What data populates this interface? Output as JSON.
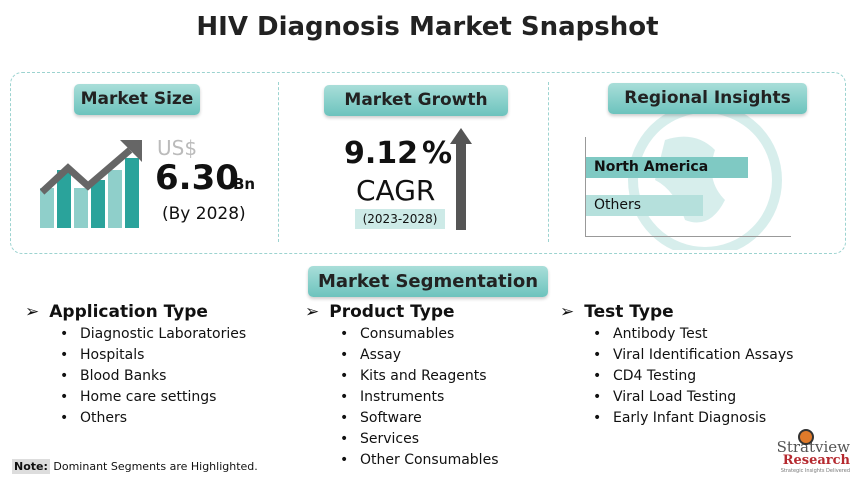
{
  "title": "HIV Diagnosis Market Snapshot",
  "market_size": {
    "label": "Market Size",
    "currency": "US$",
    "value": "6.30",
    "unit": "Bn",
    "year": "(By 2028)"
  },
  "market_growth": {
    "label": "Market Growth",
    "value": "9.12",
    "percent": "%",
    "cagr": "CAGR",
    "period": "(2023-2028)"
  },
  "regional": {
    "label": "Regional Insights",
    "bars": [
      {
        "name": "North America",
        "share": 1.0
      },
      {
        "name": "Others",
        "share": 0.72
      }
    ]
  },
  "segmentation": {
    "label": "Market Segmentation",
    "columns": [
      {
        "title": "Application Type",
        "items": [
          "Diagnostic Laboratories",
          "Hospitals",
          "Blood Banks",
          "Home care settings",
          "Others"
        ]
      },
      {
        "title": "Product Type",
        "items": [
          "Consumables",
          "Assay",
          "Kits and Reagents",
          "Instruments",
          "Software",
          "Services",
          "Other Consumables"
        ]
      },
      {
        "title": "Test Type",
        "items": [
          "Antibody Test",
          "Viral Identification Assays",
          "CD4 Testing",
          "Viral Load Testing",
          "Early Infant Diagnosis"
        ]
      }
    ]
  },
  "note": {
    "label": "Note:",
    "text": "Dominant Segments are Highlighted."
  },
  "logo": {
    "name": "Stratview",
    "sub": "Research",
    "tagline": "Strategic Insights Delivered"
  },
  "colors": {
    "teal": "#2aa39b",
    "light_teal": "#7fc9c3",
    "logo_red": "#b5292f"
  }
}
